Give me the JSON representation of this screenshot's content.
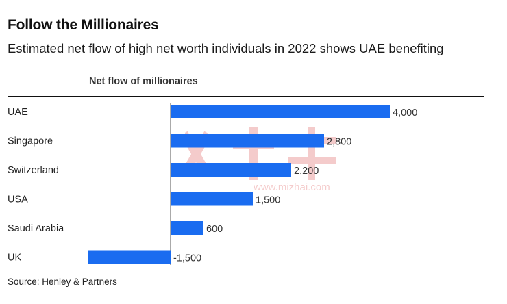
{
  "header": {
    "title": "Follow the Millionaires",
    "subtitle": "Estimated net flow of high net worth individuals in 2022 shows UAE benefiting",
    "column_header": "Net flow of millionaires"
  },
  "footer": {
    "source": "Source: Henley & Partners"
  },
  "watermark": {
    "text": "www.mizhai.com"
  },
  "colors": {
    "bar": "#1a6cf0",
    "axis": "#555555",
    "watermark": "#e06060"
  },
  "chart_data": {
    "type": "bar",
    "orientation": "horizontal",
    "title": "Follow the Millionaires",
    "subtitle": "Estimated net flow of high net worth individuals in 2022 shows UAE benefiting",
    "xlabel": "Net flow of millionaires",
    "ylabel": "",
    "categories": [
      "UAE",
      "Singapore",
      "Switzerland",
      "USA",
      "Saudi Arabia",
      "UK"
    ],
    "values": [
      4000,
      2800,
      2200,
      1500,
      600,
      -1500
    ],
    "value_labels": [
      "4,000",
      "2,800",
      "2,200",
      "1,500",
      "600",
      "-1,500"
    ],
    "xlim": [
      -1500,
      4000
    ],
    "grid": false,
    "legend": "none"
  }
}
